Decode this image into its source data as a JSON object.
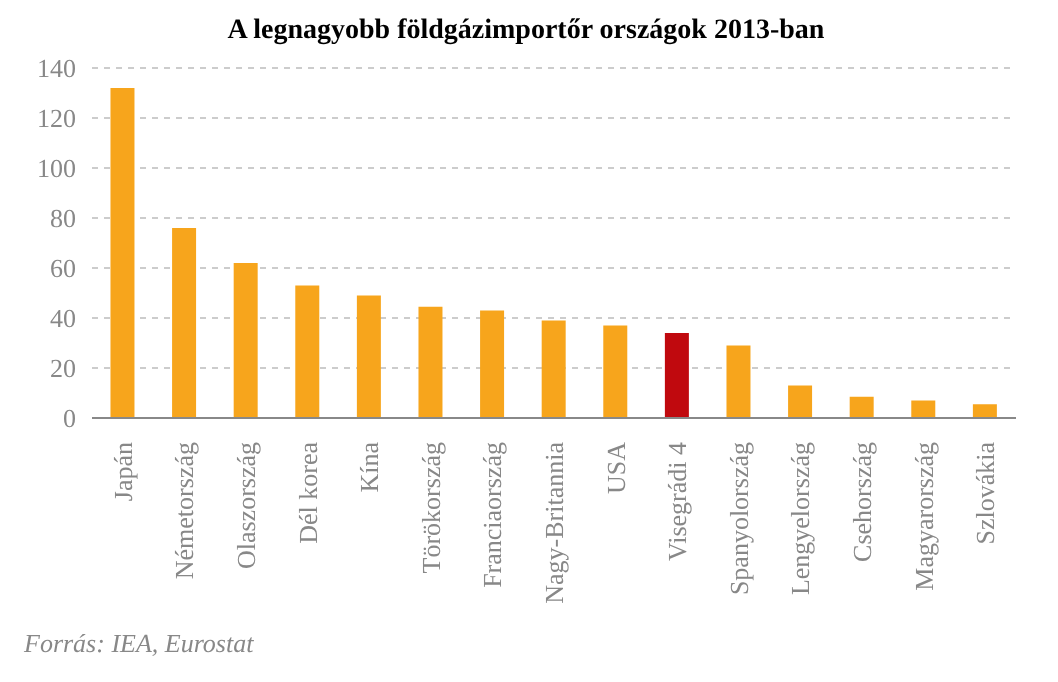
{
  "chart_data": {
    "type": "bar",
    "title": "A legnagyobb földgázimportőr országok 2013-ban",
    "categories": [
      "Japán",
      "Németország",
      "Olaszország",
      "Dél korea",
      "Kína",
      "Törökország",
      "Franciaország",
      "Nagy-Britannia",
      "USA",
      "Visegrádi 4",
      "Spanyolország",
      "Lengyelország",
      "Csehország",
      "Magyarország",
      "Szlovákia"
    ],
    "values": [
      132,
      76,
      62,
      53,
      49,
      44.5,
      43,
      39,
      37,
      34,
      29,
      13,
      8.5,
      7,
      5.5
    ],
    "colors": [
      "#f7a51c",
      "#f7a51c",
      "#f7a51c",
      "#f7a51c",
      "#f7a51c",
      "#f7a51c",
      "#f7a51c",
      "#f7a51c",
      "#f7a51c",
      "#c0090e",
      "#f7a51c",
      "#f7a51c",
      "#f7a51c",
      "#f7a51c",
      "#f7a51c"
    ],
    "ylim": [
      0,
      140
    ],
    "yticks": [
      0,
      20,
      40,
      60,
      80,
      100,
      120,
      140
    ],
    "grid": "y",
    "annotations": [
      "Forrás: IEA, Eurostat"
    ]
  }
}
